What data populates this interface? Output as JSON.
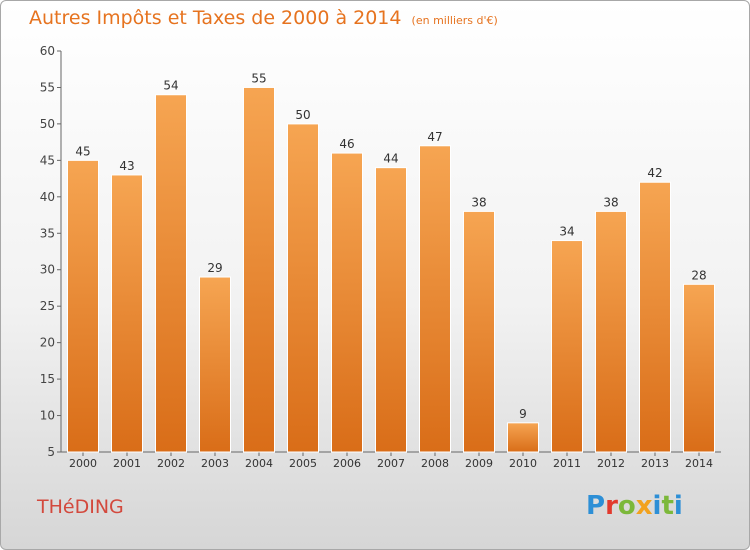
{
  "chart_data": {
    "type": "bar",
    "title": "Autres Impôts et Taxes de 2000 à 2014",
    "subtitle": "(en milliers d'€)",
    "categories": [
      "2000",
      "2001",
      "2002",
      "2003",
      "2004",
      "2005",
      "2006",
      "2007",
      "2008",
      "2009",
      "2010",
      "2011",
      "2012",
      "2013",
      "2014"
    ],
    "values": [
      45,
      43,
      54,
      29,
      55,
      50,
      46,
      44,
      47,
      38,
      9,
      34,
      38,
      42,
      28
    ],
    "ylim": [
      5,
      60
    ],
    "yticks": [
      5,
      10,
      15,
      20,
      25,
      30,
      35,
      40,
      45,
      50,
      55,
      60
    ],
    "grid": false,
    "bar_color": "#e87c22"
  },
  "commune": "THéDING",
  "logo": "Proxiti"
}
